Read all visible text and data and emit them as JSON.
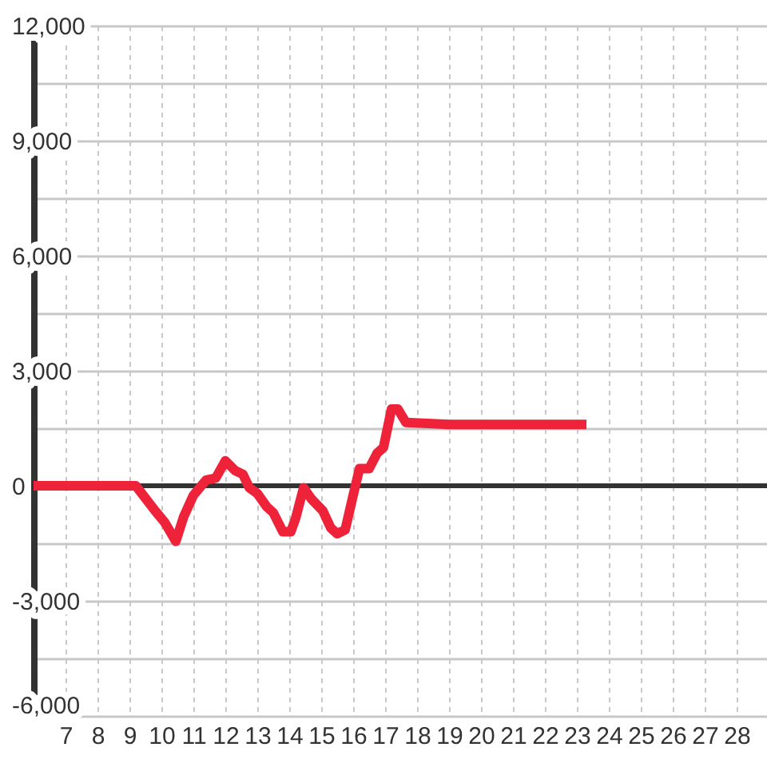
{
  "chart_data": {
    "type": "line",
    "x": [
      6,
      9.2,
      9.8,
      10.1,
      10.45,
      10.7,
      11.0,
      11.2,
      11.4,
      11.7,
      12.0,
      12.3,
      12.55,
      12.75,
      13.0,
      13.3,
      13.5,
      13.8,
      14.05,
      14.2,
      14.45,
      14.7,
      15.05,
      15.3,
      15.5,
      15.75,
      16.0,
      16.2,
      16.5,
      16.75,
      16.95,
      17.2,
      17.4,
      17.65,
      19.0,
      23.3
    ],
    "series": [
      {
        "color": "#ee2239",
        "values": [
          0,
          0,
          -650,
          -950,
          -1450,
          -800,
          -250,
          -50,
          150,
          200,
          650,
          400,
          300,
          -50,
          -200,
          -550,
          -700,
          -1200,
          -1200,
          -850,
          -50,
          -350,
          -650,
          -1100,
          -1250,
          -1150,
          -250,
          450,
          450,
          850,
          1000,
          2000,
          2000,
          1650,
          1600,
          1600
        ]
      }
    ],
    "xlim": [
      6,
      29
    ],
    "xticks": [
      7,
      8,
      9,
      10,
      11,
      12,
      13,
      14,
      15,
      16,
      17,
      18,
      19,
      20,
      21,
      22,
      23,
      24,
      25,
      26,
      27,
      28
    ],
    "ylim": [
      -6000,
      12000
    ],
    "yticks": [
      {
        "value": -6000,
        "label": "-6,000"
      },
      {
        "value": -4500,
        "label": null
      },
      {
        "value": -3000,
        "label": "-3,000"
      },
      {
        "value": -1500,
        "label": null
      },
      0,
      {
        "value": 1500,
        "label": null
      },
      {
        "value": 3000,
        "label": "3,000"
      },
      {
        "value": 4500,
        "label": null
      },
      {
        "value": 6000,
        "label": "6,000"
      },
      {
        "value": 7500,
        "label": null
      },
      {
        "value": 9000,
        "label": "9,000"
      },
      {
        "value": 10500,
        "label": null
      },
      {
        "value": 12000,
        "label": "12,000"
      }
    ],
    "grid": true,
    "ref_lines": [
      {
        "axis": "y",
        "value": 0,
        "color": "#333333"
      }
    ]
  }
}
